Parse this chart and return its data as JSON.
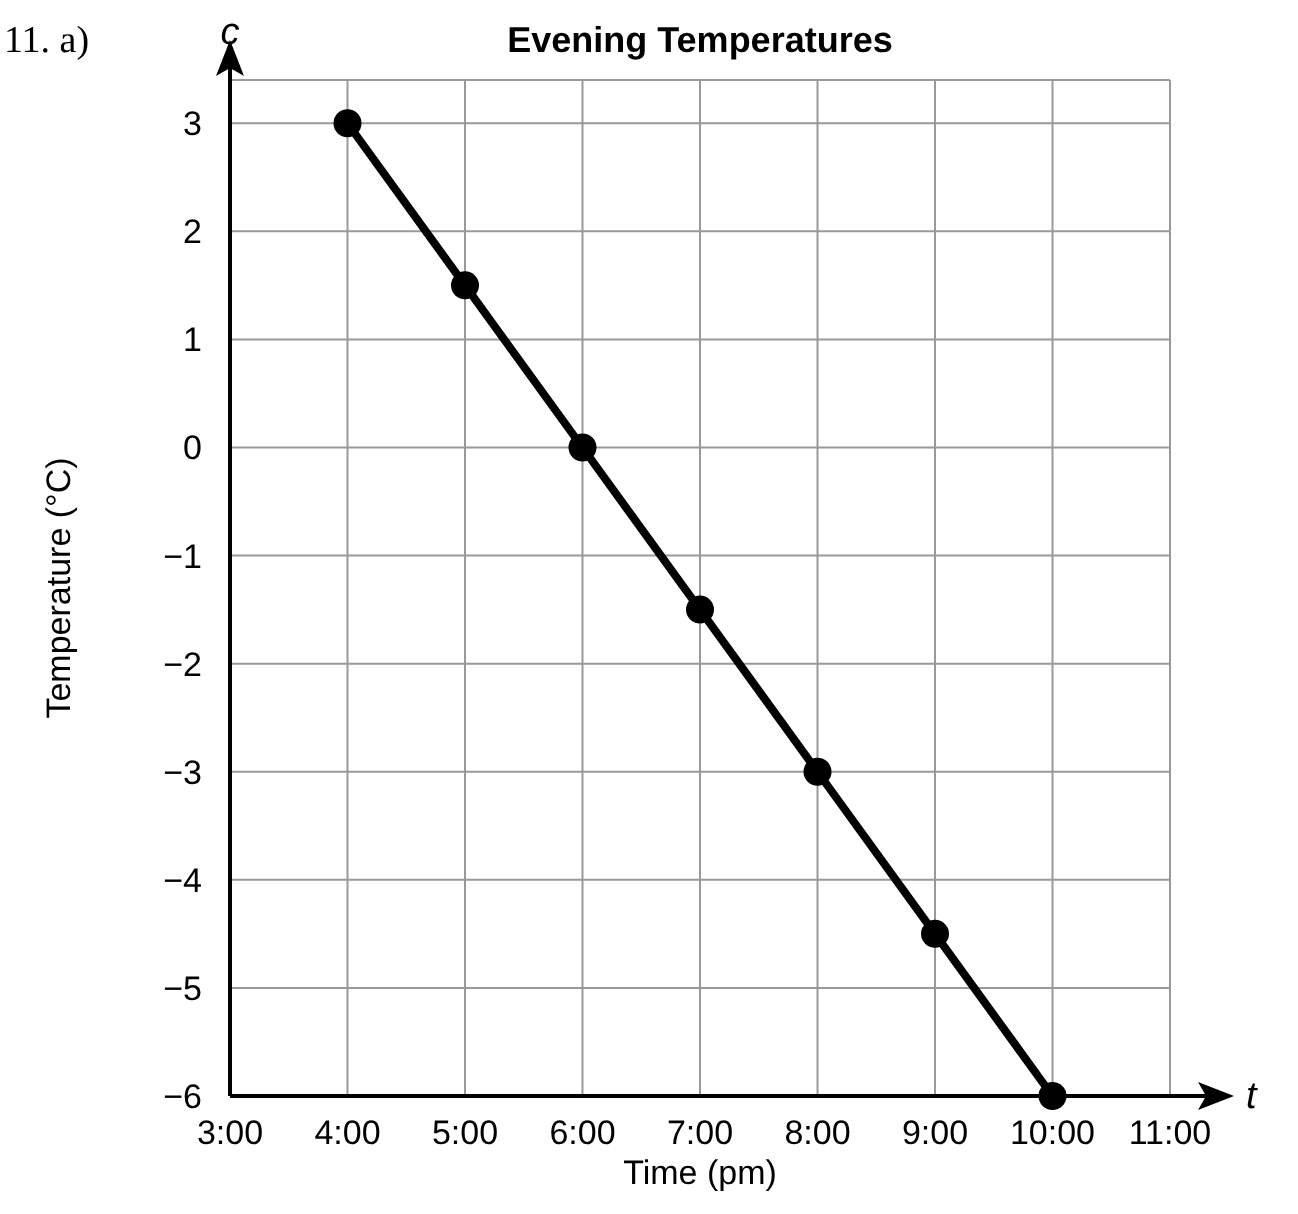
{
  "chart_data": {
    "type": "line",
    "title": "Evening Temperatures",
    "xlabel": "Time (pm)",
    "ylabel": "Temperature (°C)",
    "annotations": [
      "11. a)",
      "c",
      "t"
    ],
    "categories": [
      "3:00",
      "4:00",
      "5:00",
      "6:00",
      "7:00",
      "8:00",
      "9:00",
      "10:00",
      "11:00"
    ],
    "series": [
      {
        "color": "#000000",
        "values": [
          null,
          3,
          1.5,
          0,
          -1.5,
          -3,
          -4.5,
          -6,
          null
        ]
      }
    ],
    "ylim": [
      -6,
      3.4
    ],
    "yticks": [
      -6,
      -5,
      -4,
      -3,
      -2,
      -1,
      0,
      1,
      2,
      3
    ],
    "grid": true,
    "marker": "circle",
    "line_style": "solid"
  }
}
